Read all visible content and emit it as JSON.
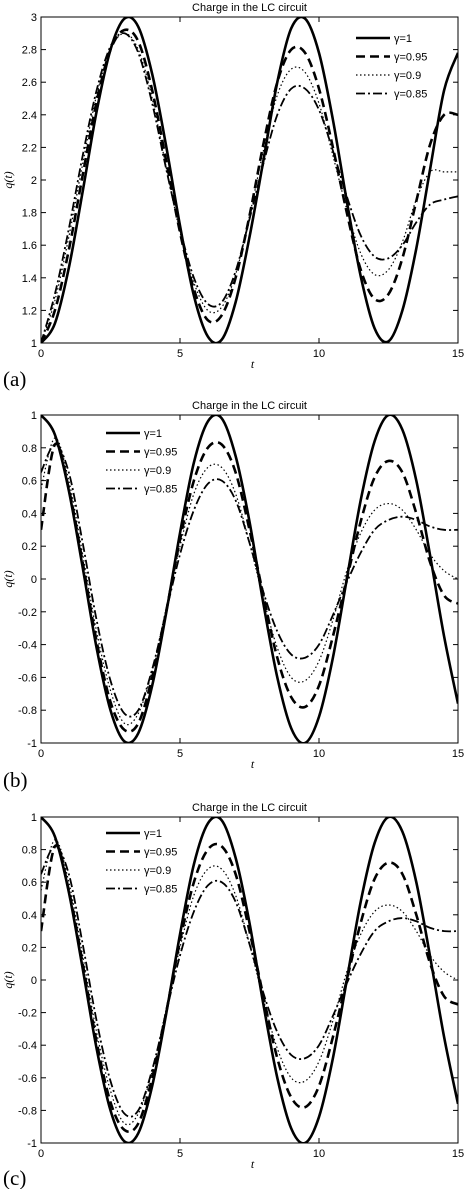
{
  "chart_data": [
    {
      "type": "line",
      "panel_label": "(a)",
      "title": "Charge in the LC circuit",
      "xlabel": "t",
      "ylabel": "q(t)",
      "xlim": [
        0,
        15
      ],
      "ylim": [
        1,
        3
      ],
      "xticks": [
        "0",
        "5",
        "10",
        "15"
      ],
      "yticks": [
        "1",
        "1.2",
        "1.4",
        "1.6",
        "1.8",
        "2",
        "2.2",
        "2.4",
        "2.6",
        "2.8",
        "3"
      ],
      "legend_position": "top-right",
      "x": [
        0,
        0.5,
        1,
        1.5,
        2,
        2.5,
        3,
        3.5,
        4,
        4.5,
        5,
        5.5,
        6,
        6.5,
        7,
        7.5,
        8,
        8.5,
        9,
        9.5,
        10,
        10.5,
        11,
        11.5,
        12,
        12.5,
        13,
        13.5,
        14,
        14.5,
        15
      ],
      "series": [
        {
          "name": "γ=1",
          "values": [
            1.0,
            1.12,
            1.46,
            1.93,
            2.42,
            2.8,
            2.99,
            2.94,
            2.65,
            2.21,
            1.72,
            1.29,
            1.04,
            1.02,
            1.25,
            1.65,
            2.12,
            2.6,
            2.93,
            2.99,
            2.78,
            2.37,
            1.87,
            1.41,
            1.09,
            1.01,
            1.2,
            1.58,
            2.07,
            2.55,
            2.78
          ]
        },
        {
          "name": "γ=0.95",
          "values": [
            1.0,
            1.2,
            1.57,
            2.03,
            2.48,
            2.8,
            2.92,
            2.85,
            2.55,
            2.12,
            1.68,
            1.33,
            1.14,
            1.17,
            1.4,
            1.78,
            2.22,
            2.6,
            2.8,
            2.78,
            2.56,
            2.2,
            1.8,
            1.45,
            1.27,
            1.3,
            1.52,
            1.87,
            2.22,
            2.4,
            2.4
          ]
        },
        {
          "name": "γ=0.9",
          "values": [
            1.0,
            1.26,
            1.65,
            2.1,
            2.52,
            2.8,
            2.9,
            2.8,
            2.5,
            2.08,
            1.68,
            1.37,
            1.2,
            1.22,
            1.42,
            1.78,
            2.18,
            2.52,
            2.68,
            2.66,
            2.47,
            2.15,
            1.82,
            1.55,
            1.42,
            1.45,
            1.62,
            1.88,
            2.05,
            2.05,
            2.05
          ]
        },
        {
          "name": "γ=0.85",
          "values": [
            1.0,
            1.3,
            1.7,
            2.15,
            2.55,
            2.82,
            2.9,
            2.78,
            2.47,
            2.07,
            1.7,
            1.4,
            1.24,
            1.25,
            1.44,
            1.76,
            2.1,
            2.4,
            2.56,
            2.56,
            2.43,
            2.18,
            1.9,
            1.66,
            1.53,
            1.52,
            1.6,
            1.74,
            1.85,
            1.88,
            1.9
          ]
        }
      ]
    },
    {
      "type": "line",
      "panel_label": "(b)",
      "title": "Charge in the LC circuit",
      "xlabel": "t",
      "ylabel": "q(t)",
      "xlim": [
        0,
        15
      ],
      "ylim": [
        -1,
        1
      ],
      "xticks": [
        "0",
        "5",
        "10",
        "15"
      ],
      "yticks": [
        "-1",
        "-0.8",
        "-0.6",
        "-0.4",
        "-0.2",
        "0",
        "0.2",
        "0.4",
        "0.6",
        "0.8",
        "1"
      ],
      "legend_position": "top-left",
      "x": [
        0,
        0.5,
        1,
        1.5,
        2,
        2.5,
        3,
        3.5,
        4,
        4.5,
        5,
        5.5,
        6,
        6.5,
        7,
        7.5,
        8,
        8.5,
        9,
        9.5,
        10,
        10.5,
        11,
        11.5,
        12,
        12.5,
        13,
        13.5,
        14,
        14.5,
        15
      ],
      "series": [
        {
          "name": "γ=1",
          "values": [
            1.0,
            0.88,
            0.54,
            0.07,
            -0.42,
            -0.8,
            -0.99,
            -0.94,
            -0.65,
            -0.21,
            0.28,
            0.71,
            0.96,
            0.98,
            0.75,
            0.35,
            -0.15,
            -0.6,
            -0.91,
            -1.0,
            -0.84,
            -0.48,
            0.0,
            0.48,
            0.84,
            1.0,
            0.91,
            0.6,
            0.14,
            -0.35,
            -0.76
          ]
        },
        {
          "name": "γ=0.95",
          "values": [
            0.3,
            0.82,
            0.55,
            0.1,
            -0.38,
            -0.75,
            -0.92,
            -0.88,
            -0.6,
            -0.2,
            0.24,
            0.6,
            0.8,
            0.82,
            0.65,
            0.3,
            -0.1,
            -0.48,
            -0.72,
            -0.78,
            -0.65,
            -0.35,
            0.0,
            0.35,
            0.62,
            0.72,
            0.65,
            0.4,
            0.1,
            -0.1,
            -0.15
          ]
        },
        {
          "name": "γ=0.9",
          "values": [
            0.55,
            0.86,
            0.6,
            0.15,
            -0.32,
            -0.68,
            -0.88,
            -0.82,
            -0.56,
            -0.18,
            0.2,
            0.52,
            0.68,
            0.68,
            0.52,
            0.22,
            -0.12,
            -0.42,
            -0.6,
            -0.62,
            -0.5,
            -0.25,
            0.05,
            0.28,
            0.42,
            0.46,
            0.42,
            0.3,
            0.15,
            0.05,
            0.0
          ]
        },
        {
          "name": "γ=0.85",
          "values": [
            0.65,
            0.82,
            0.65,
            0.22,
            -0.25,
            -0.62,
            -0.82,
            -0.8,
            -0.55,
            -0.2,
            0.15,
            0.42,
            0.58,
            0.6,
            0.48,
            0.22,
            -0.08,
            -0.32,
            -0.46,
            -0.48,
            -0.4,
            -0.22,
            -0.02,
            0.16,
            0.3,
            0.36,
            0.38,
            0.36,
            0.32,
            0.3,
            0.3
          ]
        }
      ]
    },
    {
      "type": "line",
      "panel_label": "(c)",
      "title": "Charge in the LC circuit",
      "xlabel": "t",
      "ylabel": "q(t)",
      "xlim": [
        0,
        15
      ],
      "ylim": [
        -1,
        1
      ],
      "xticks": [
        "0",
        "5",
        "10",
        "15"
      ],
      "yticks": [
        "-1",
        "-0.8",
        "-0.6",
        "-0.4",
        "-0.2",
        "0",
        "0.2",
        "0.4",
        "0.6",
        "0.8",
        "1"
      ],
      "legend_position": "top-left",
      "x": [
        0,
        0.5,
        1,
        1.5,
        2,
        2.5,
        3,
        3.5,
        4,
        4.5,
        5,
        5.5,
        6,
        6.5,
        7,
        7.5,
        8,
        8.5,
        9,
        9.5,
        10,
        10.5,
        11,
        11.5,
        12,
        12.5,
        13,
        13.5,
        14,
        14.5,
        15
      ],
      "series": [
        {
          "name": "γ=1",
          "values": [
            1.0,
            0.88,
            0.54,
            0.07,
            -0.42,
            -0.8,
            -0.99,
            -0.94,
            -0.65,
            -0.21,
            0.28,
            0.71,
            0.96,
            0.98,
            0.75,
            0.35,
            -0.15,
            -0.6,
            -0.91,
            -1.0,
            -0.84,
            -0.48,
            0.0,
            0.48,
            0.84,
            1.0,
            0.91,
            0.6,
            0.14,
            -0.35,
            -0.76
          ]
        },
        {
          "name": "γ=0.95",
          "values": [
            0.3,
            0.82,
            0.55,
            0.1,
            -0.38,
            -0.75,
            -0.92,
            -0.88,
            -0.6,
            -0.2,
            0.24,
            0.6,
            0.8,
            0.82,
            0.65,
            0.3,
            -0.1,
            -0.48,
            -0.72,
            -0.78,
            -0.65,
            -0.35,
            0.0,
            0.35,
            0.62,
            0.72,
            0.65,
            0.4,
            0.1,
            -0.1,
            -0.15
          ]
        },
        {
          "name": "γ=0.9",
          "values": [
            0.55,
            0.86,
            0.6,
            0.15,
            -0.32,
            -0.68,
            -0.88,
            -0.82,
            -0.56,
            -0.18,
            0.2,
            0.52,
            0.68,
            0.68,
            0.52,
            0.22,
            -0.12,
            -0.42,
            -0.6,
            -0.62,
            -0.5,
            -0.25,
            0.05,
            0.28,
            0.42,
            0.46,
            0.42,
            0.3,
            0.15,
            0.05,
            0.0
          ]
        },
        {
          "name": "γ=0.85",
          "values": [
            0.65,
            0.82,
            0.65,
            0.22,
            -0.25,
            -0.62,
            -0.82,
            -0.8,
            -0.55,
            -0.2,
            0.15,
            0.42,
            0.58,
            0.6,
            0.48,
            0.22,
            -0.08,
            -0.32,
            -0.46,
            -0.48,
            -0.4,
            -0.22,
            -0.02,
            0.16,
            0.3,
            0.36,
            0.38,
            0.36,
            0.32,
            0.3,
            0.3
          ]
        }
      ]
    }
  ],
  "line_styles": [
    {
      "series": "γ=1",
      "dash": "solid",
      "weight": "thick",
      "color": "#000000"
    },
    {
      "series": "γ=0.95",
      "dash": "dashed",
      "weight": "thick",
      "color": "#000000"
    },
    {
      "series": "γ=0.9",
      "dash": "dotted",
      "weight": "thin",
      "color": "#000000"
    },
    {
      "series": "γ=0.85",
      "dash": "dash-dot",
      "weight": "medium",
      "color": "#000000"
    }
  ]
}
